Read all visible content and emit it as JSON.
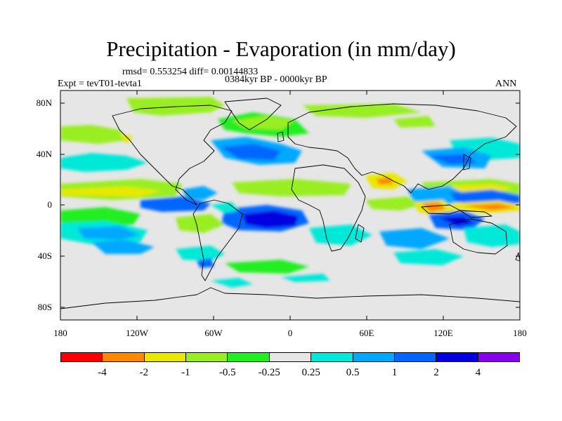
{
  "title": "Precipitation - Evaporation (in mm/day)",
  "stats": "rmsd= 0.553254 diff= 0.00144833",
  "period": "0384kyr BP - 0000kyr BP",
  "experiment": "Expt = tevT01-tevta1",
  "season": "ANN",
  "lat_labels": [
    "80N",
    "40N",
    "0",
    "40S",
    "80S"
  ],
  "lon_labels": [
    "180",
    "120W",
    "60W",
    "0",
    "60E",
    "120E",
    "180"
  ],
  "colorbar": {
    "colors": [
      "#ff0000",
      "#ff8800",
      "#e8e800",
      "#99ee22",
      "#22ee22",
      "#e6e6e6",
      "#00e8d8",
      "#00a8ff",
      "#0066ff",
      "#0000e0",
      "#8800ee"
    ],
    "labels": [
      "-4",
      "-2",
      "-1",
      "-0.5",
      "-0.25",
      "0.25",
      "0.5",
      "1",
      "2",
      "4"
    ]
  },
  "background_color": "#e6e6e6"
}
